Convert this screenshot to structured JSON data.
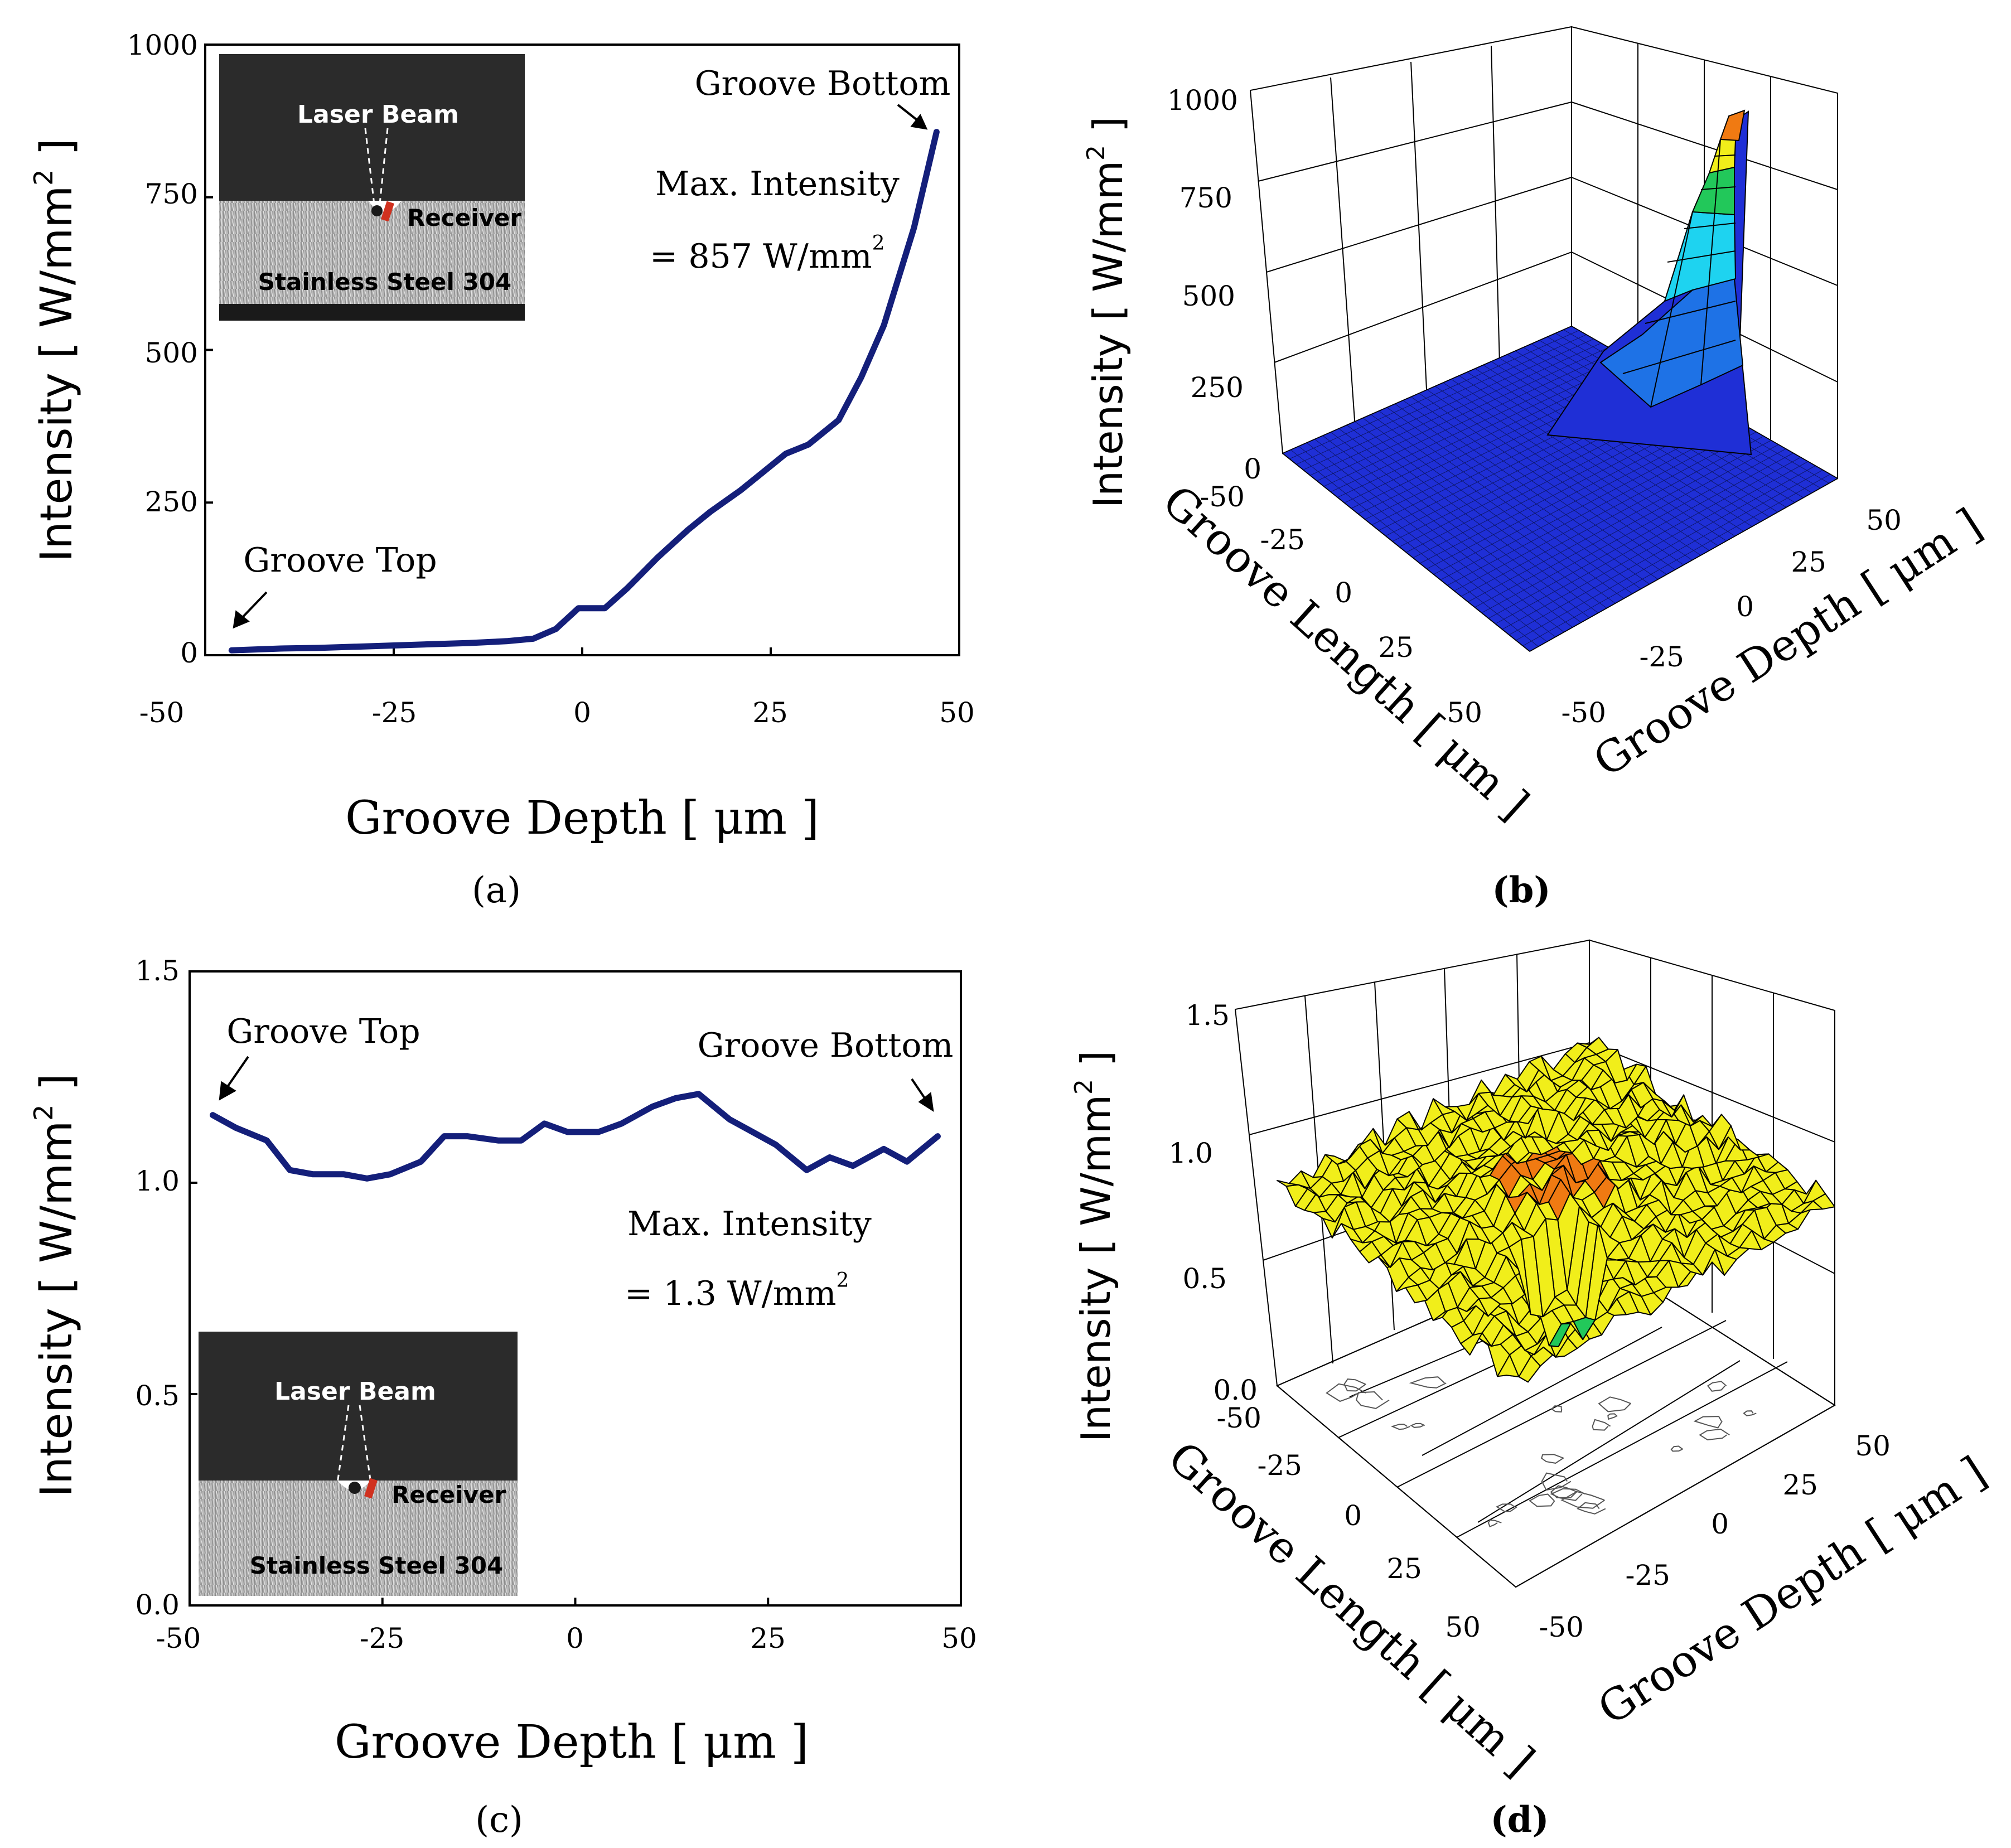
{
  "figure": {
    "panel_labels": [
      "(a)",
      "(b)",
      "(c)",
      "(d)"
    ]
  },
  "colors": {
    "line": "#141f7a",
    "surface_blue": "#1f2fd6",
    "surface_cyan": "#1ed3f0",
    "surface_green": "#22c85a",
    "surface_yellow": "#f1ee1a",
    "surface_orange": "#f07a12"
  },
  "chart_data": [
    {
      "id": "a",
      "type": "line",
      "title": "",
      "xlabel": "Groove Depth [ μm ]",
      "ylabel": "Intensity [ W/mm",
      "ylabel_sup": "2",
      "ylabel_close": " ]",
      "xlim": [
        -50,
        50
      ],
      "ylim": [
        0,
        1000
      ],
      "xticks": [
        -50,
        -25,
        0,
        25,
        50
      ],
      "yticks": [
        0,
        250,
        500,
        750,
        1000
      ],
      "grid": false,
      "series": [
        {
          "name": "Intensity",
          "x": [
            -46.5,
            -40,
            -35,
            -30,
            -25,
            -20,
            -15,
            -10,
            -6.5,
            -3.5,
            -0.5,
            3,
            6,
            10,
            14,
            17,
            21,
            24,
            27,
            30,
            34,
            37,
            40,
            44,
            47
          ],
          "y": [
            8,
            11,
            12,
            14,
            16,
            18,
            20,
            23,
            27,
            43,
            77,
            77,
            110,
            160,
            205,
            235,
            270,
            300,
            330,
            345,
            385,
            455,
            540,
            700,
            857
          ]
        }
      ],
      "annotations": {
        "top": "Groove Top",
        "bottom": "Groove Bottom",
        "max_title": "Max. Intensity",
        "max_value": "= 857 W/mm",
        "max_sup": "2"
      },
      "inset": {
        "beam": "Laser Beam",
        "receiver": "Receiver",
        "material": "Stainless Steel 304"
      }
    },
    {
      "id": "b",
      "type": "surface",
      "title": "",
      "xlabel": "Groove Length [ μm ]",
      "ylabel": "Groove Depth [ μm ]",
      "zlabel": "Intensity [ W/mm",
      "zlabel_sup": "2",
      "zlabel_close": " ]",
      "xlim": [
        -50,
        50
      ],
      "ylim": [
        -50,
        50
      ],
      "zlim": [
        0,
        1000
      ],
      "xticks": [
        -50,
        -25,
        0,
        25,
        50
      ],
      "yticks": [
        -50,
        -25,
        0,
        25,
        50
      ],
      "zticks": [
        0,
        250,
        500,
        750,
        1000
      ],
      "peak_value": 857,
      "peak_location": "Groove Length -50, Groove Depth 50"
    },
    {
      "id": "c",
      "type": "line",
      "title": "",
      "xlabel": "Groove Depth [ μm ]",
      "ylabel": "Intensity [ W/mm",
      "ylabel_sup": "2",
      "ylabel_close": " ]",
      "xlim": [
        -50,
        50
      ],
      "ylim": [
        0.0,
        1.5
      ],
      "xticks": [
        -50,
        -25,
        0,
        25,
        50
      ],
      "yticks": [
        0.0,
        0.5,
        1.0,
        1.5
      ],
      "ytick_labels": [
        "0.0",
        "0.5",
        "1.0",
        "1.5"
      ],
      "grid": false,
      "series": [
        {
          "name": "Intensity",
          "x": [
            -47,
            -44,
            -40,
            -37,
            -34,
            -30,
            -27,
            -24,
            -20,
            -17,
            -14,
            -10,
            -7,
            -4,
            -1,
            3,
            6,
            10,
            13,
            16,
            20,
            23,
            26,
            30,
            33,
            36,
            40,
            43,
            47
          ],
          "y": [
            1.16,
            1.13,
            1.1,
            1.03,
            1.02,
            1.02,
            1.01,
            1.02,
            1.05,
            1.11,
            1.11,
            1.1,
            1.1,
            1.14,
            1.12,
            1.12,
            1.14,
            1.18,
            1.2,
            1.21,
            1.15,
            1.12,
            1.09,
            1.03,
            1.06,
            1.04,
            1.08,
            1.05,
            1.11
          ]
        }
      ],
      "annotations": {
        "top": "Groove Top",
        "bottom": "Groove Bottom",
        "max_title": "Max. Intensity",
        "max_value": "= 1.3 W/mm",
        "max_sup": "2"
      },
      "inset": {
        "beam": "Laser Beam",
        "receiver": "Receiver",
        "material": "Stainless Steel 304"
      }
    },
    {
      "id": "d",
      "type": "surface",
      "title": "",
      "xlabel": "Groove Length [ μm ]",
      "ylabel": "Groove Depth [ μm ]",
      "zlabel": "Intensity [ W/mm",
      "zlabel_sup": "2",
      "zlabel_close": " ]",
      "xlim": [
        -50,
        50
      ],
      "ylim": [
        -50,
        50
      ],
      "zlim": [
        0.0,
        1.5
      ],
      "xticks": [
        -50,
        -25,
        0,
        25,
        50
      ],
      "yticks": [
        -50,
        -25,
        0,
        25,
        50
      ],
      "zticks": [
        0.0,
        0.5,
        1.0,
        1.5
      ],
      "ztick_labels": [
        "0.0",
        "0.5",
        "1.0",
        "1.5"
      ],
      "mean_value": 1.1,
      "max_value": 1.3
    }
  ]
}
